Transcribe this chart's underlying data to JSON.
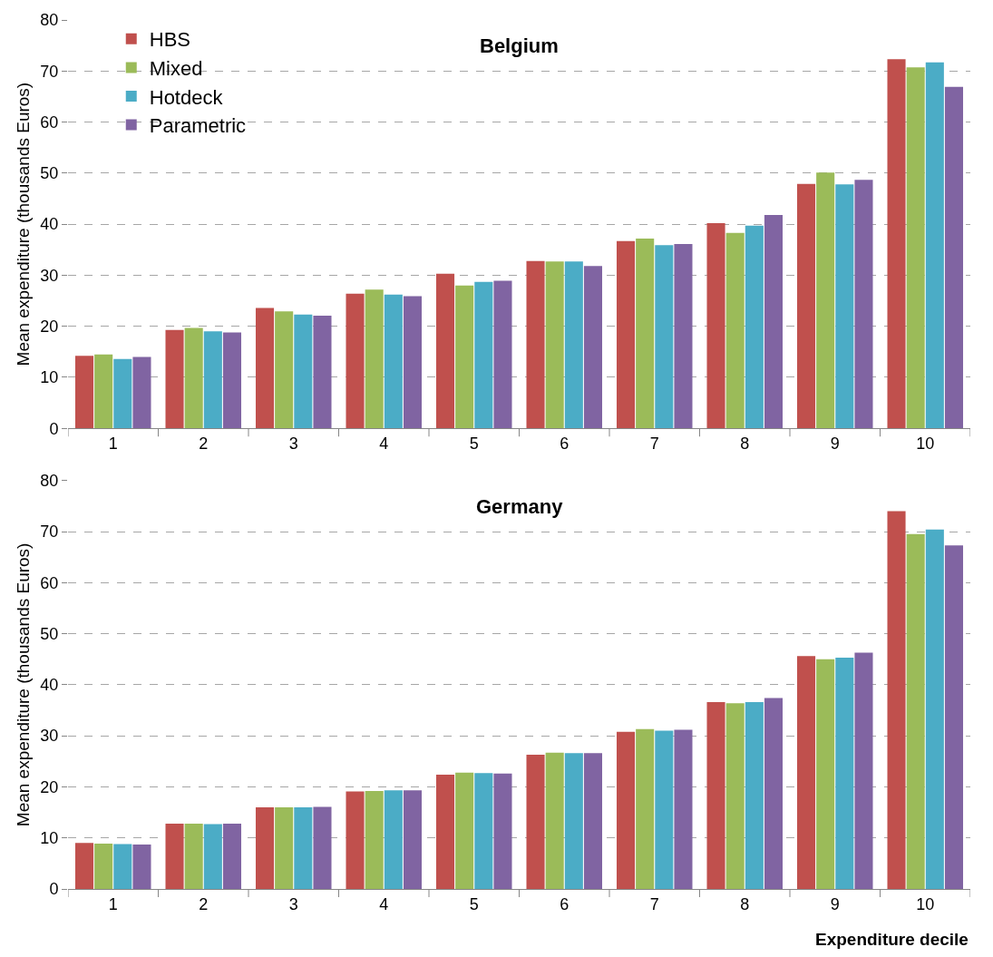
{
  "chart_data": [
    {
      "type": "bar",
      "title": "Belgium",
      "ylabel": "Mean expenditure (thousands Euros)",
      "categories": [
        "1",
        "2",
        "3",
        "4",
        "5",
        "6",
        "7",
        "8",
        "9",
        "10"
      ],
      "series": [
        {
          "name": "HBS",
          "color": "#c0504d",
          "values": [
            14.2,
            19.3,
            23.6,
            26.4,
            30.3,
            32.8,
            36.7,
            40.2,
            47.9,
            72.3
          ]
        },
        {
          "name": "Mixed",
          "color": "#9bbb59",
          "values": [
            14.5,
            19.7,
            22.9,
            27.2,
            28.0,
            32.7,
            37.2,
            38.3,
            50.1,
            70.7
          ]
        },
        {
          "name": "Hotdeck",
          "color": "#4bacc6",
          "values": [
            13.6,
            19.0,
            22.3,
            26.2,
            28.7,
            32.7,
            35.9,
            39.7,
            47.8,
            71.7
          ]
        },
        {
          "name": "Parametric",
          "color": "#8064a2",
          "values": [
            14.0,
            18.8,
            22.1,
            25.9,
            28.9,
            31.8,
            36.1,
            41.8,
            48.7,
            66.9
          ]
        }
      ],
      "ylim": [
        0,
        80
      ],
      "yticks": [
        0,
        10,
        20,
        30,
        40,
        50,
        60,
        70,
        80
      ],
      "grid": "y",
      "legend": "top left"
    },
    {
      "type": "bar",
      "title": "Germany",
      "ylabel": "Mean expenditure (thousands Euros)",
      "xlabel": "Expenditure decile",
      "categories": [
        "1",
        "2",
        "3",
        "4",
        "5",
        "6",
        "7",
        "8",
        "9",
        "10"
      ],
      "series": [
        {
          "color": "#c0504d",
          "values": [
            9.0,
            12.8,
            16.0,
            19.1,
            22.4,
            26.3,
            30.8,
            36.6,
            45.6,
            74.0
          ]
        },
        {
          "color": "#9bbb59",
          "values": [
            8.9,
            12.8,
            16.0,
            19.2,
            22.8,
            26.7,
            31.3,
            36.4,
            45.0,
            69.5
          ]
        },
        {
          "color": "#4bacc6",
          "values": [
            8.8,
            12.7,
            16.0,
            19.3,
            22.7,
            26.6,
            31.0,
            36.6,
            45.3,
            70.4
          ]
        },
        {
          "color": "#8064a2",
          "values": [
            8.7,
            12.8,
            16.1,
            19.3,
            22.6,
            26.6,
            31.2,
            37.4,
            46.3,
            67.3
          ]
        }
      ],
      "ylim": [
        0,
        80
      ],
      "yticks": [
        0,
        10,
        20,
        30,
        40,
        50,
        60,
        70,
        80
      ],
      "grid": "y"
    }
  ]
}
